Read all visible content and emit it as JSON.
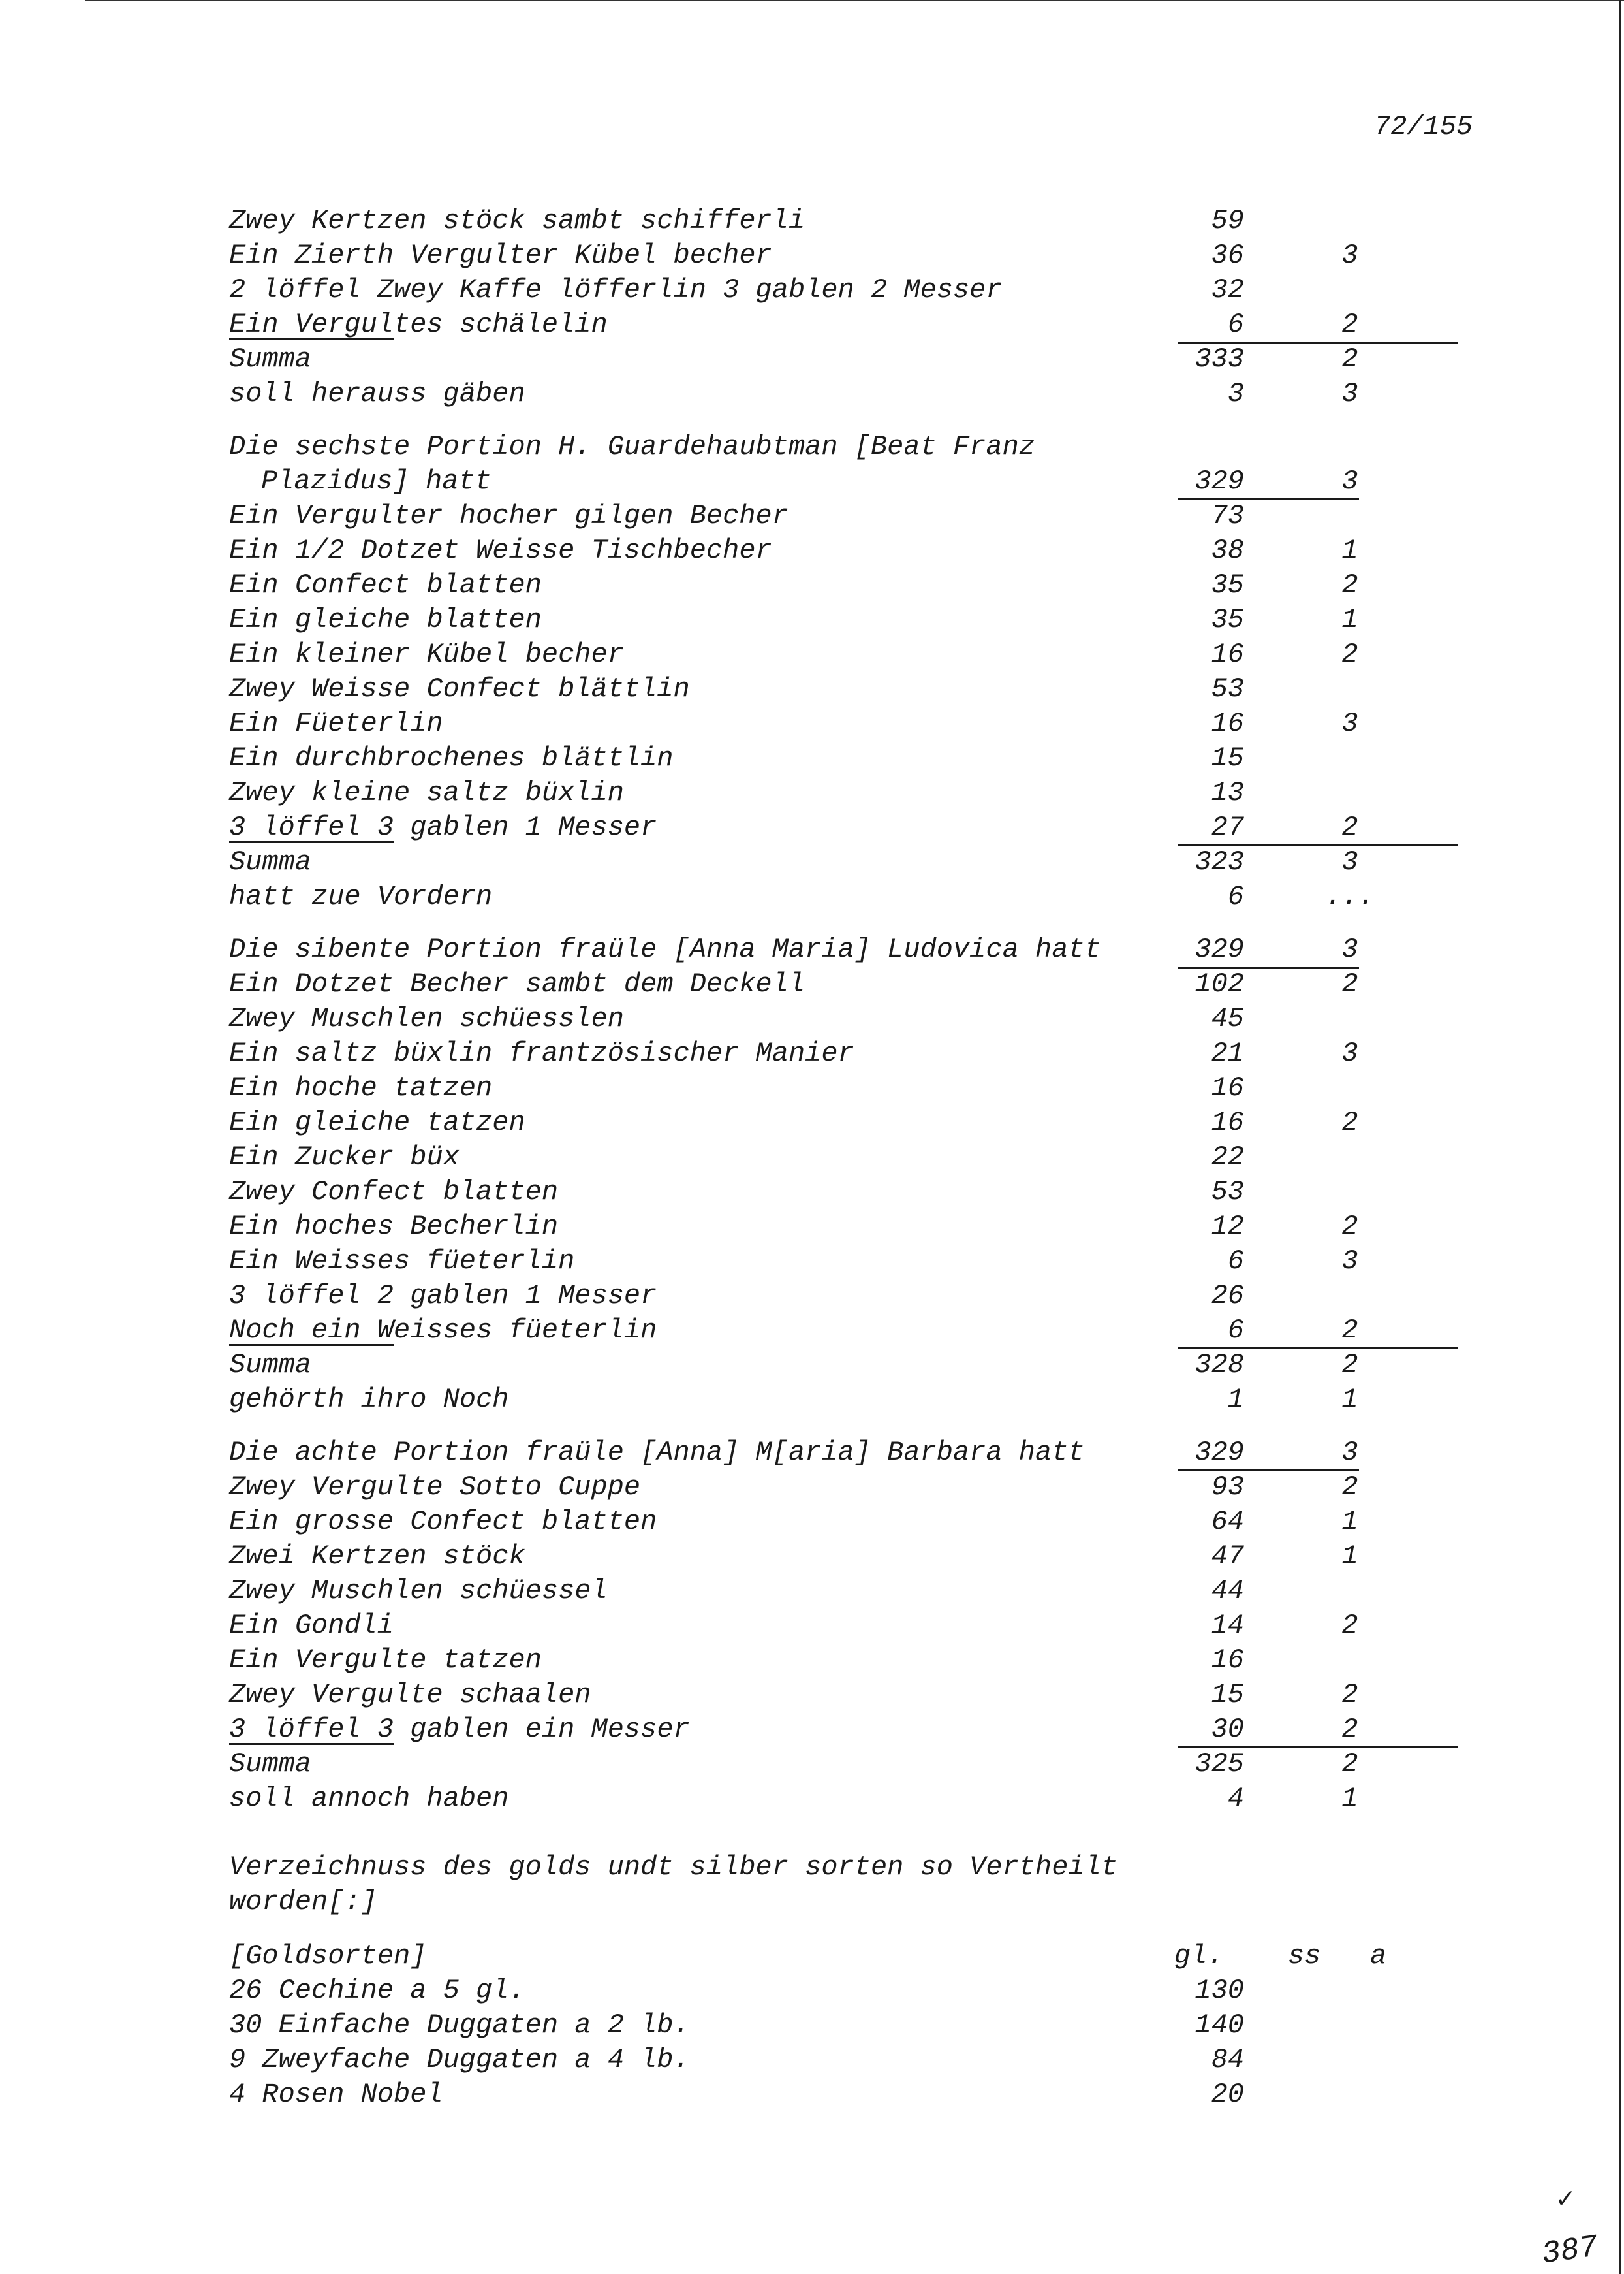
{
  "page_number": "72/155",
  "blocks": [
    {
      "rows": [
        {
          "text": "Zwey Kertzen stöck sambt schifferli",
          "n1": "59",
          "n2": ""
        },
        {
          "text": "Ein Zierth Vergulter Kübel becher",
          "n1": "36",
          "n2": "3"
        },
        {
          "text": "2 löffel Zwey Kaffe löfferlin 3 gablen 2 Messer",
          "n1": "32",
          "n2": ""
        },
        {
          "u": "Ein Vergul",
          "text": "tes schälelin",
          "n1": "6",
          "n2": "2",
          "rule": "total"
        },
        {
          "text": "Summa",
          "n1": "333",
          "n2": "2"
        },
        {
          "text": "soll herauss gäben",
          "n1": "3",
          "n2": "3"
        }
      ]
    },
    {
      "rows": [
        {
          "text": "Die sechste Portion H. Guardehaubtman [Beat Franz",
          "n1": "",
          "n2": ""
        },
        {
          "text": "Plazidus] hatt",
          "indent": true,
          "n1": "329",
          "n2": "3",
          "rule": "sub"
        },
        {
          "text": "Ein Vergulter hocher gilgen Becher",
          "n1": "73",
          "n2": ""
        },
        {
          "text": "Ein 1/2 Dotzet Weisse Tischbecher",
          "n1": "38",
          "n2": "1"
        },
        {
          "text": "Ein Confect blatten",
          "n1": "35",
          "n2": "2"
        },
        {
          "text": "Ein gleiche blatten",
          "n1": "35",
          "n2": "1"
        },
        {
          "text": "Ein kleiner Kübel becher",
          "n1": "16",
          "n2": "2"
        },
        {
          "text": "Zwey Weisse Confect blättlin",
          "n1": "53",
          "n2": ""
        },
        {
          "text": "Ein Füeterlin",
          "n1": "16",
          "n2": "3"
        },
        {
          "text": "Ein durchbrochenes blättlin",
          "n1": "15",
          "n2": ""
        },
        {
          "text": "Zwey kleine saltz büxlin",
          "n1": "13",
          "n2": ""
        },
        {
          "u": "3 löffel 3",
          "text": " gablen 1 Messer",
          "n1": "27",
          "n2": "2",
          "rule": "total"
        },
        {
          "text": "Summa",
          "n1": "323",
          "n2": "3"
        },
        {
          "text": "hatt zue Vordern",
          "n1": "6",
          "n2": "..."
        }
      ]
    },
    {
      "rows": [
        {
          "text": "Die sibente Portion fraüle [Anna Maria] Ludovica hatt",
          "n1": "329",
          "n2": "3",
          "rule": "sub"
        },
        {
          "text": "Ein Dotzet Becher sambt dem Deckell",
          "n1": "102",
          "n2": "2"
        },
        {
          "text": "Zwey Muschlen schüesslen",
          "n1": "45",
          "n2": ""
        },
        {
          "text": "Ein saltz büxlin frantzösischer Manier",
          "n1": "21",
          "n2": "3"
        },
        {
          "text": "Ein hoche tatzen",
          "n1": "16",
          "n2": ""
        },
        {
          "text": "Ein gleiche tatzen",
          "n1": "16",
          "n2": "2"
        },
        {
          "text": "Ein Zucker büx",
          "n1": "22",
          "n2": ""
        },
        {
          "text": "Zwey Confect blatten",
          "n1": "53",
          "n2": ""
        },
        {
          "text": "Ein hoches Becherlin",
          "n1": "12",
          "n2": "2"
        },
        {
          "text": "Ein Weisses füeterlin",
          "n1": "6",
          "n2": "3"
        },
        {
          "text": "3 löffel 2 gablen 1 Messer",
          "n1": "26",
          "n2": ""
        },
        {
          "u": "Noch ein W",
          "text": "eisses füeterlin",
          "n1": "6",
          "n2": "2",
          "rule": "total"
        },
        {
          "text": "Summa",
          "n1": "328",
          "n2": "2"
        },
        {
          "text": "gehörth ihro Noch",
          "n1": "1",
          "n2": "1"
        }
      ]
    },
    {
      "rows": [
        {
          "text": "Die achte Portion fraüle [Anna] M[aria] Barbara hatt",
          "n1": "329",
          "n2": "3",
          "rule": "sub"
        },
        {
          "text": "Zwey Vergulte Sotto Cuppe",
          "n1": "93",
          "n2": "2"
        },
        {
          "text": "Ein grosse Confect blatten",
          "n1": "64",
          "n2": "1"
        },
        {
          "text": "Zwei Kertzen stöck",
          "n1": "47",
          "n2": "1"
        },
        {
          "text": "Zwey Muschlen schüessel",
          "n1": "44",
          "n2": ""
        },
        {
          "text": "Ein Gondli",
          "n1": "14",
          "n2": "2"
        },
        {
          "text": "Ein Vergulte tatzen",
          "n1": "16",
          "n2": ""
        },
        {
          "text": "Zwey Vergulte schaalen",
          "n1": "15",
          "n2": "2"
        },
        {
          "u": "3 löffel 3",
          "text": " gablen ein Messer",
          "n1": "30",
          "n2": "2",
          "rule": "total"
        },
        {
          "text": "Summa",
          "n1": "325",
          "n2": "2"
        },
        {
          "text": "soll annoch haben",
          "n1": "4",
          "n2": "1"
        }
      ]
    },
    {
      "large_gap": true,
      "rows": [
        {
          "text": "Verzeichnuss des golds undt silber sorten so Vertheilt",
          "n1": "",
          "n2": ""
        },
        {
          "text": "worden[:]",
          "n1": "",
          "n2": ""
        }
      ]
    }
  ],
  "gold": {
    "heading": "[Goldsorten]",
    "col_gl": "gl.",
    "col_ss": "ss",
    "col_a": "a",
    "rows": [
      {
        "text": "26 Cechine a 5 gl.",
        "n1": "130"
      },
      {
        "text": "30 Einfache Duggaten a 2 lb.",
        "n1": "140"
      },
      {
        "text": "9 Zweyfache Duggaten a 4 lb.",
        "n1": "84"
      },
      {
        "text": "4 Rosen Nobel",
        "n1": "20"
      }
    ]
  },
  "margin_marks": {
    "check": "✓",
    "folio": "387"
  }
}
